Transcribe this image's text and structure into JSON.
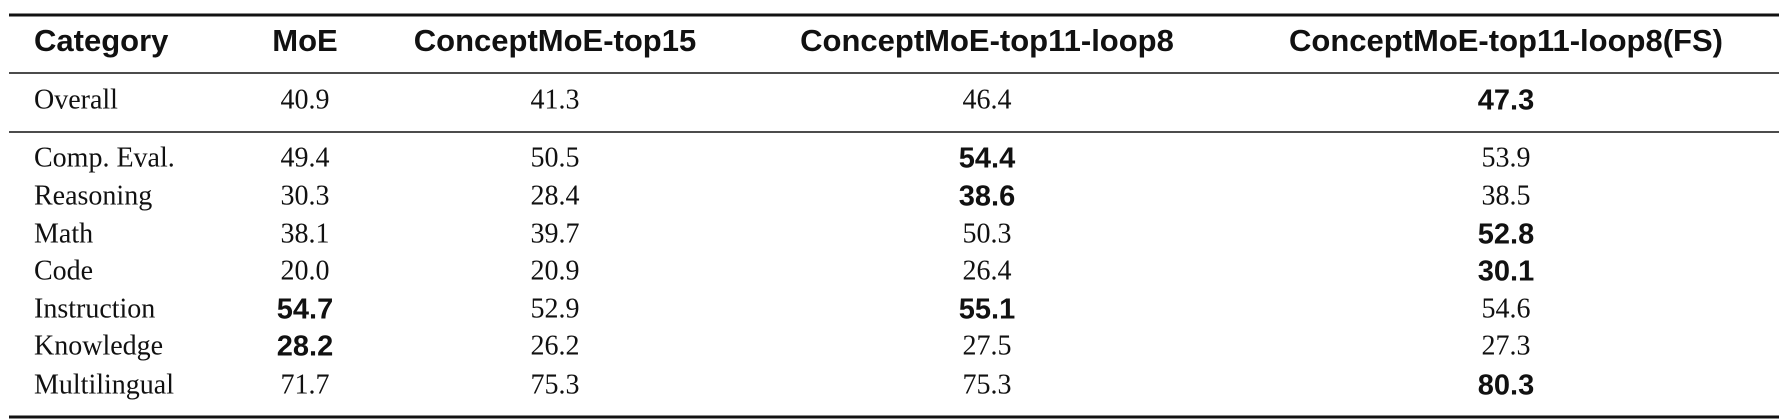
{
  "table": {
    "header": [
      "Category",
      "MoE",
      "ConceptMoE-top15",
      "ConceptMoE-top11-loop8",
      "ConceptMoE-top11-loop8(FS)"
    ],
    "rows": [
      {
        "category": "Overall",
        "values": [
          "40.9",
          "41.3",
          "46.4",
          "47.3"
        ],
        "bold": [
          false,
          false,
          false,
          true
        ]
      },
      {
        "category": "Comp. Eval.",
        "values": [
          "49.4",
          "50.5",
          "54.4",
          "53.9"
        ],
        "bold": [
          false,
          false,
          true,
          false
        ]
      },
      {
        "category": "Reasoning",
        "values": [
          "30.3",
          "28.4",
          "38.6",
          "38.5"
        ],
        "bold": [
          false,
          false,
          true,
          false
        ]
      },
      {
        "category": "Math",
        "values": [
          "38.1",
          "39.7",
          "50.3",
          "52.8"
        ],
        "bold": [
          false,
          false,
          false,
          true
        ]
      },
      {
        "category": "Code",
        "values": [
          "20.0",
          "20.9",
          "26.4",
          "30.1"
        ],
        "bold": [
          false,
          false,
          false,
          true
        ]
      },
      {
        "category": "Instruction",
        "values": [
          "54.7",
          "52.9",
          "55.1",
          "54.6"
        ],
        "bold": [
          true,
          false,
          true,
          false
        ]
      },
      {
        "category": "Knowledge",
        "values": [
          "28.2",
          "26.2",
          "27.5",
          "27.3"
        ],
        "bold": [
          true,
          false,
          false,
          false
        ]
      },
      {
        "category": "Multilingual",
        "values": [
          "71.7",
          "75.3",
          "75.3",
          "80.3"
        ],
        "bold": [
          false,
          false,
          false,
          true
        ]
      }
    ]
  }
}
